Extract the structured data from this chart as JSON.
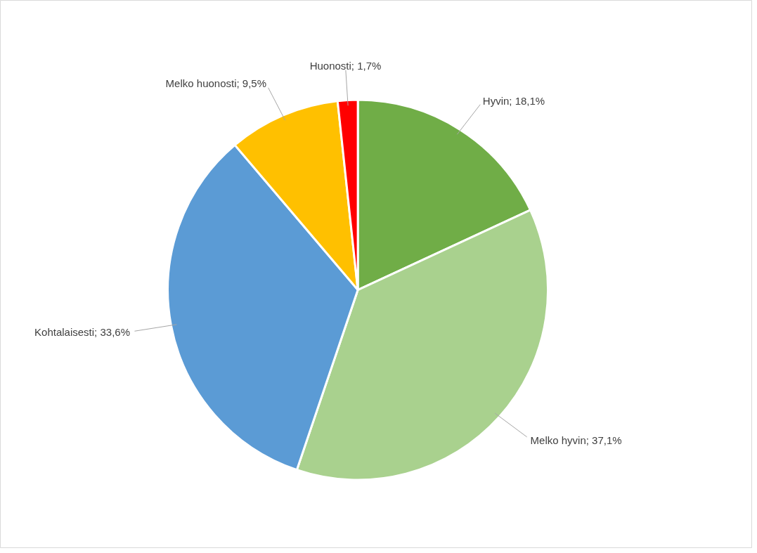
{
  "chart_data": {
    "type": "pie",
    "categories": [
      "Hyvin",
      "Melko hyvin",
      "Kohtalaisesti",
      "Melko huonosti",
      "Huonosti"
    ],
    "values": [
      18.1,
      37.1,
      33.6,
      9.5,
      1.7
    ],
    "value_labels": [
      "18,1%",
      "37,1%",
      "33,6%",
      "9,5%",
      "1,7%"
    ],
    "colors": [
      "#70ad47",
      "#a9d18e",
      "#5b9bd5",
      "#ffc000",
      "#ff0000"
    ]
  }
}
